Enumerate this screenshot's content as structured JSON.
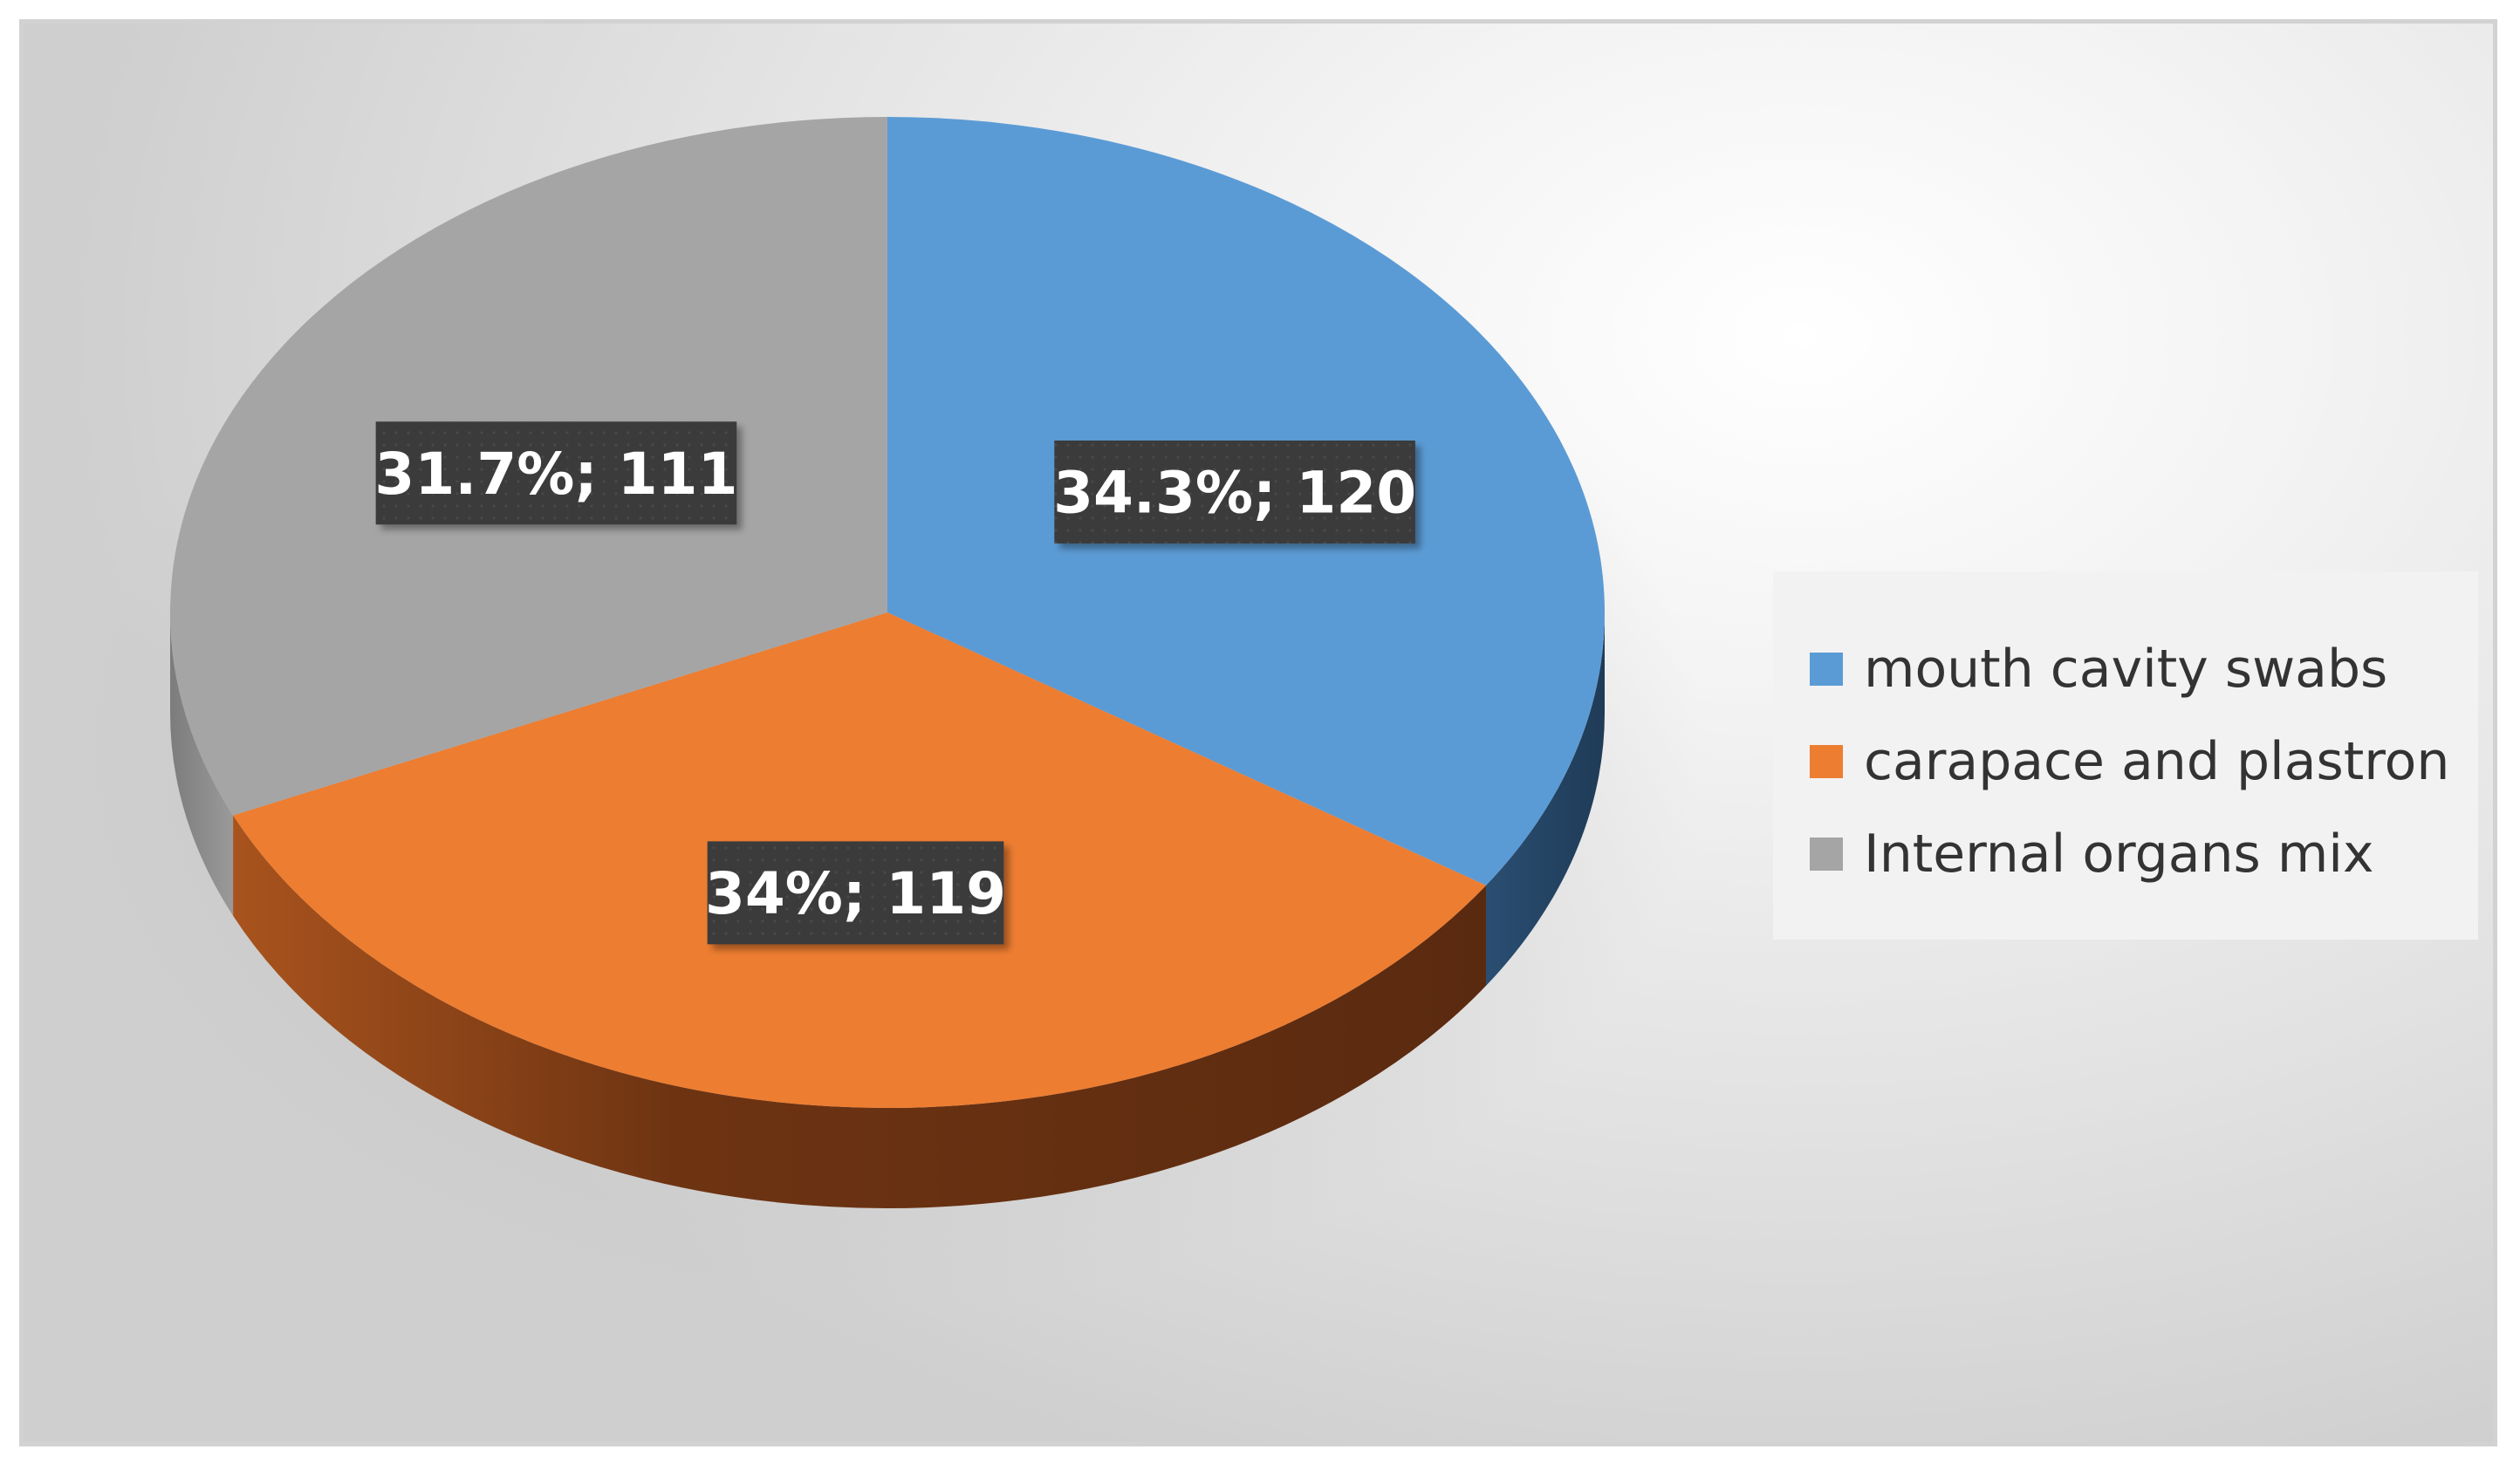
{
  "chart_data": {
    "type": "pie",
    "subtype": "3d",
    "title": "",
    "series": [
      {
        "label": "mouth cavity swabs",
        "value": 120,
        "percent_label": "34.3%; 120",
        "color": "#5b9bd5"
      },
      {
        "label": "carapace and plastron",
        "value": 119,
        "percent_label": "34%; 119",
        "color": "#ed7d31"
      },
      {
        "label": "Internal organs mix",
        "value": 111,
        "percent_label": "31.7%; 111",
        "color": "#a5a5a5"
      }
    ],
    "legend": {
      "position": "right"
    },
    "data_label_style": {
      "background": "#3a3a3a",
      "color": "#ffffff"
    }
  }
}
